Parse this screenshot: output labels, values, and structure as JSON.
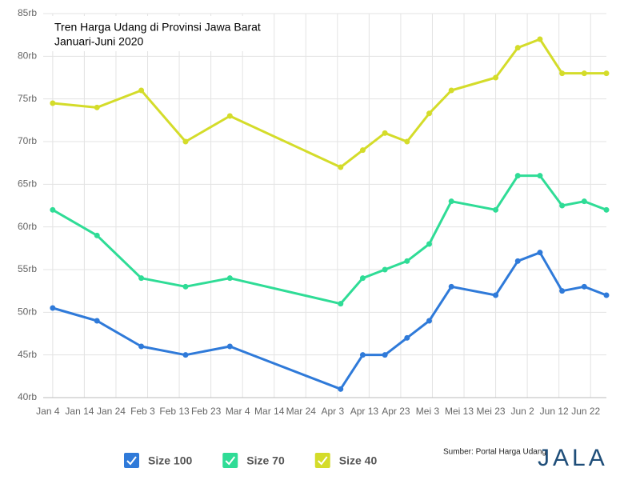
{
  "chart_data": {
    "type": "line",
    "title": "Tren Harga Udang di Provinsi Jawa Barat",
    "subtitle": "Januari-Juni 2020",
    "x": [
      "2020-01-04",
      "2020-01-18",
      "2020-02-01",
      "2020-02-15",
      "2020-02-29",
      "2020-04-04",
      "2020-04-11",
      "2020-04-18",
      "2020-04-25",
      "2020-05-02",
      "2020-05-09",
      "2020-05-23",
      "2020-05-30",
      "2020-06-06",
      "2020-06-13",
      "2020-06-20",
      "2020-06-27"
    ],
    "series": [
      {
        "name": "Size 100",
        "color": "#2f7ad9",
        "values": [
          50.5,
          49,
          46,
          45,
          46,
          41,
          45,
          45,
          47,
          49,
          53,
          52,
          56,
          57,
          52.5,
          53,
          52
        ]
      },
      {
        "name": "Size 70",
        "color": "#2fdc96",
        "values": [
          62,
          59,
          54,
          53,
          54,
          51,
          54,
          55,
          56,
          58,
          63,
          62,
          66,
          66,
          62.5,
          63,
          62
        ]
      },
      {
        "name": "Size 40",
        "color": "#d4dc2a",
        "values": [
          74.5,
          74,
          76,
          70,
          73,
          67,
          69,
          71,
          70,
          73.3,
          76,
          77.5,
          81,
          82,
          78,
          78,
          78
        ]
      }
    ],
    "xlim": [
      "2020-01-01",
      "2020-06-27"
    ],
    "xticks": [
      {
        "value": "2020-01-04",
        "label": "Jan 4"
      },
      {
        "value": "2020-01-14",
        "label": "Jan 14"
      },
      {
        "value": "2020-01-24",
        "label": "Jan 24"
      },
      {
        "value": "2020-02-03",
        "label": "Feb 3"
      },
      {
        "value": "2020-02-13",
        "label": "Feb 13"
      },
      {
        "value": "2020-02-23",
        "label": "Feb 23"
      },
      {
        "value": "2020-03-04",
        "label": "Mar 4"
      },
      {
        "value": "2020-03-14",
        "label": "Mar 14"
      },
      {
        "value": "2020-03-24",
        "label": "Mar 24"
      },
      {
        "value": "2020-04-03",
        "label": "Apr 3"
      },
      {
        "value": "2020-04-13",
        "label": "Apr 13"
      },
      {
        "value": "2020-04-23",
        "label": "Apr 23"
      },
      {
        "value": "2020-05-03",
        "label": "Mei 3"
      },
      {
        "value": "2020-05-13",
        "label": "Mei 13"
      },
      {
        "value": "2020-05-23",
        "label": "Mei 23"
      },
      {
        "value": "2020-06-02",
        "label": "Jun 2"
      },
      {
        "value": "2020-06-12",
        "label": "Jun 12"
      },
      {
        "value": "2020-06-22",
        "label": "Jun 22"
      }
    ],
    "ylim": [
      40,
      85
    ],
    "yticks": [
      {
        "value": 40,
        "label": "40rb"
      },
      {
        "value": 45,
        "label": "45rb"
      },
      {
        "value": 50,
        "label": "50rb"
      },
      {
        "value": 55,
        "label": "55rb"
      },
      {
        "value": 60,
        "label": "60rb"
      },
      {
        "value": 65,
        "label": "65rb"
      },
      {
        "value": 70,
        "label": "70rb"
      },
      {
        "value": 75,
        "label": "75rb"
      },
      {
        "value": 80,
        "label": "80rb"
      },
      {
        "value": 85,
        "label": "85rb"
      }
    ],
    "grid": true,
    "legend": "bottom"
  },
  "source": "Sumber: Portal Harga Udang",
  "brand": "JALA"
}
